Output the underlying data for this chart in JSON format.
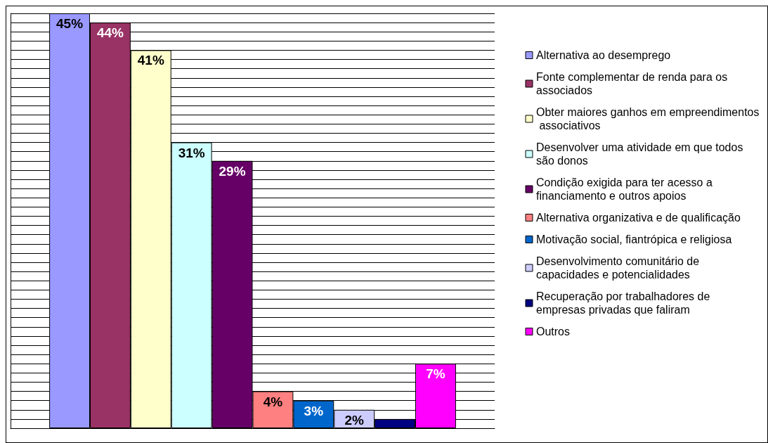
{
  "chart_data": {
    "type": "bar",
    "categories": [
      null
    ],
    "series": [
      {
        "name": "Alternativa ao desemprego",
        "color": "#9999ff",
        "values": [
          45
        ],
        "value_labels": [
          "45%"
        ]
      },
      {
        "name": "Fonte complementar de renda para os associados",
        "color": "#993366",
        "values": [
          44
        ],
        "value_labels": [
          "44%"
        ]
      },
      {
        "name": "Obter maiores ganhos em empreendimentos associativos",
        "color": "#ffffcc",
        "values": [
          41
        ],
        "value_labels": [
          "41%"
        ]
      },
      {
        "name": "Desenvolver uma atividade em que todos são donos",
        "color": "#ccffff",
        "values": [
          31
        ],
        "value_labels": [
          "31%"
        ]
      },
      {
        "name": "Condição exigida para ter acesso a financiamento e outros apoios",
        "color": "#660066",
        "values": [
          29
        ],
        "value_labels": [
          "29%"
        ]
      },
      {
        "name": "Alternativa organizativa e de qualificação",
        "color": "#ff8080",
        "values": [
          4
        ],
        "value_labels": [
          "4%"
        ]
      },
      {
        "name": "Motivação social, fiantrópica e religiosa",
        "color": "#0066cc",
        "values": [
          3
        ],
        "value_labels": [
          "3%"
        ]
      },
      {
        "name": "Desenvolvimento comunitário de capacidades e potencialidades",
        "color": "#ccccff",
        "values": [
          2
        ],
        "value_labels": [
          "2%"
        ]
      },
      {
        "name": "Recuperação por trabalhadores de empresas privadas que faliram",
        "color": "#000080",
        "values": [
          1
        ],
        "value_labels": [
          null
        ]
      },
      {
        "name": "Outros",
        "color": "#ff00ff",
        "values": [
          7
        ],
        "value_labels": [
          "7%"
        ]
      }
    ],
    "ylim": [
      0,
      45
    ],
    "yticks": [
      0,
      1,
      2,
      3,
      4,
      5,
      6,
      7,
      8,
      9,
      10,
      11,
      12,
      13,
      14,
      15,
      16,
      17,
      18,
      19,
      20,
      21,
      22,
      23,
      24,
      25,
      26,
      27,
      28,
      29,
      30,
      31,
      32,
      33,
      34,
      35,
      36,
      37,
      38,
      39,
      40,
      41,
      42,
      43,
      44,
      45
    ],
    "grid": "y",
    "legend": "right",
    "tick_labels": false
  }
}
